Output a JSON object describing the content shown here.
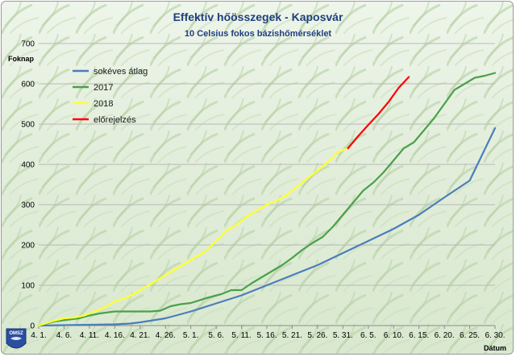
{
  "chart_data": {
    "type": "line",
    "title": "Effektív hőösszegek - Kaposvár",
    "subtitle": "10 Celsius fokos bázishőmérséklet",
    "ylabel": "Foknap",
    "xlabel": "Dátum",
    "ylim": [
      0,
      700
    ],
    "yticks": [
      0,
      100,
      200,
      300,
      400,
      500,
      600,
      700
    ],
    "categories": [
      "4. 1.",
      "4. 6.",
      "4. 11.",
      "4. 16.",
      "4. 21.",
      "4. 26.",
      "5. 1.",
      "5. 6.",
      "5. 11.",
      "5. 16.",
      "5. 21.",
      "5. 26.",
      "5. 31.",
      "6. 5.",
      "6. 10.",
      "6. 15.",
      "6. 20.",
      "6. 25.",
      "6. 30."
    ],
    "x_start_date": "4. 1.",
    "legend_position": "top-left",
    "grid": true,
    "series": [
      {
        "name": "sokéves átlag",
        "color": "#4a7ebb",
        "x": [
          0,
          5,
          10,
          15,
          18,
          20,
          25,
          30,
          35,
          40,
          45,
          50,
          55,
          60,
          65,
          70,
          75,
          80,
          85,
          90
        ],
        "y": [
          0,
          1,
          2,
          3,
          5,
          8,
          18,
          35,
          55,
          75,
          100,
          125,
          150,
          180,
          210,
          240,
          275,
          318,
          360,
          490
        ]
      },
      {
        "name": "2017",
        "color": "#4aa14a",
        "x": [
          0,
          3,
          6,
          8,
          10,
          12,
          15,
          18,
          20,
          22,
          24,
          26,
          28,
          30,
          33,
          36,
          38,
          40,
          42,
          44,
          46,
          48,
          50,
          52,
          54,
          56,
          58,
          60,
          62,
          64,
          66,
          68,
          70,
          72,
          74,
          76,
          78,
          80,
          82,
          84,
          86,
          88,
          90
        ],
        "y": [
          0,
          10,
          15,
          18,
          25,
          30,
          35,
          35,
          35,
          35,
          37,
          48,
          53,
          56,
          68,
          78,
          88,
          88,
          105,
          120,
          135,
          150,
          168,
          188,
          205,
          220,
          245,
          275,
          305,
          335,
          355,
          380,
          410,
          440,
          455,
          485,
          515,
          550,
          585,
          600,
          615,
          620,
          627
        ]
      },
      {
        "name": "2018",
        "color": "#ffff33",
        "x": [
          0,
          3,
          5,
          7,
          9,
          11,
          13,
          15,
          17,
          19,
          21,
          23,
          25,
          27,
          29,
          31,
          33,
          35,
          37,
          39,
          41,
          43,
          45,
          47,
          49,
          51,
          53,
          55,
          57,
          59,
          61
        ],
        "y": [
          0,
          12,
          18,
          20,
          25,
          35,
          45,
          60,
          68,
          80,
          95,
          110,
          125,
          140,
          155,
          170,
          185,
          210,
          235,
          250,
          270,
          285,
          300,
          310,
          325,
          345,
          365,
          385,
          405,
          430,
          440
        ]
      },
      {
        "name": "előrejelzés",
        "color": "#ff0000",
        "x": [
          61,
          63,
          65,
          67,
          69,
          71,
          73
        ],
        "y": [
          440,
          470,
          498,
          525,
          555,
          590,
          617
        ]
      }
    ]
  },
  "logo": {
    "text": "OMSZ"
  }
}
